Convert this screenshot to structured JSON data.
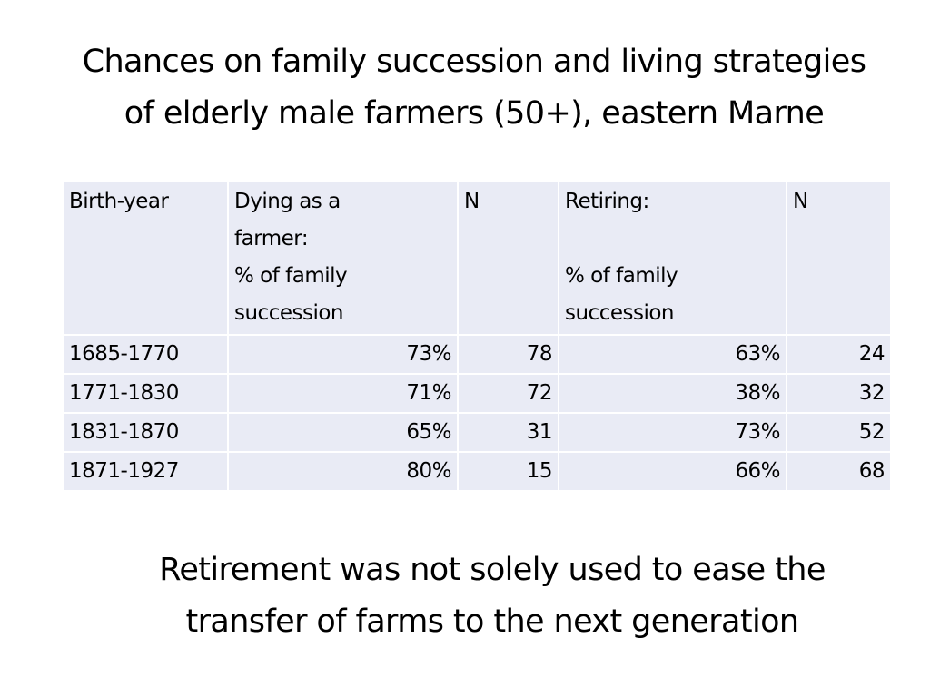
{
  "slide": {
    "title_lines": [
      "Chances on family succession and living strategies",
      "of elderly male farmers (50+), eastern Marne"
    ],
    "conclusion_lines": [
      "Retirement was not solely used to ease the",
      "transfer of farms to the next generation"
    ]
  },
  "table": {
    "headers": {
      "birth_year": [
        "Birth-year"
      ],
      "dying": [
        "Dying as a",
        "farmer:",
        "% of family",
        "succession"
      ],
      "n1": [
        "N"
      ],
      "retiring": [
        "Retiring:",
        "",
        "% of family",
        "succession"
      ],
      "n2": [
        "N"
      ]
    },
    "rows": [
      {
        "birth_year": "1685-1770",
        "dying_pct": "73%",
        "dying_n": "78",
        "retiring_pct": "63%",
        "retiring_n": "24"
      },
      {
        "birth_year": "1771-1830",
        "dying_pct": "71%",
        "dying_n": "72",
        "retiring_pct": "38%",
        "retiring_n": "32"
      },
      {
        "birth_year": "1831-1870",
        "dying_pct": "65%",
        "dying_n": "31",
        "retiring_pct": "73%",
        "retiring_n": "52"
      },
      {
        "birth_year": "1871-1927",
        "dying_pct": "80%",
        "dying_n": "15",
        "retiring_pct": "66%",
        "retiring_n": "68"
      }
    ]
  },
  "colors": {
    "table_cell_bg": "#e9ebf5",
    "table_grid": "#ffffff",
    "text": "#000000"
  }
}
